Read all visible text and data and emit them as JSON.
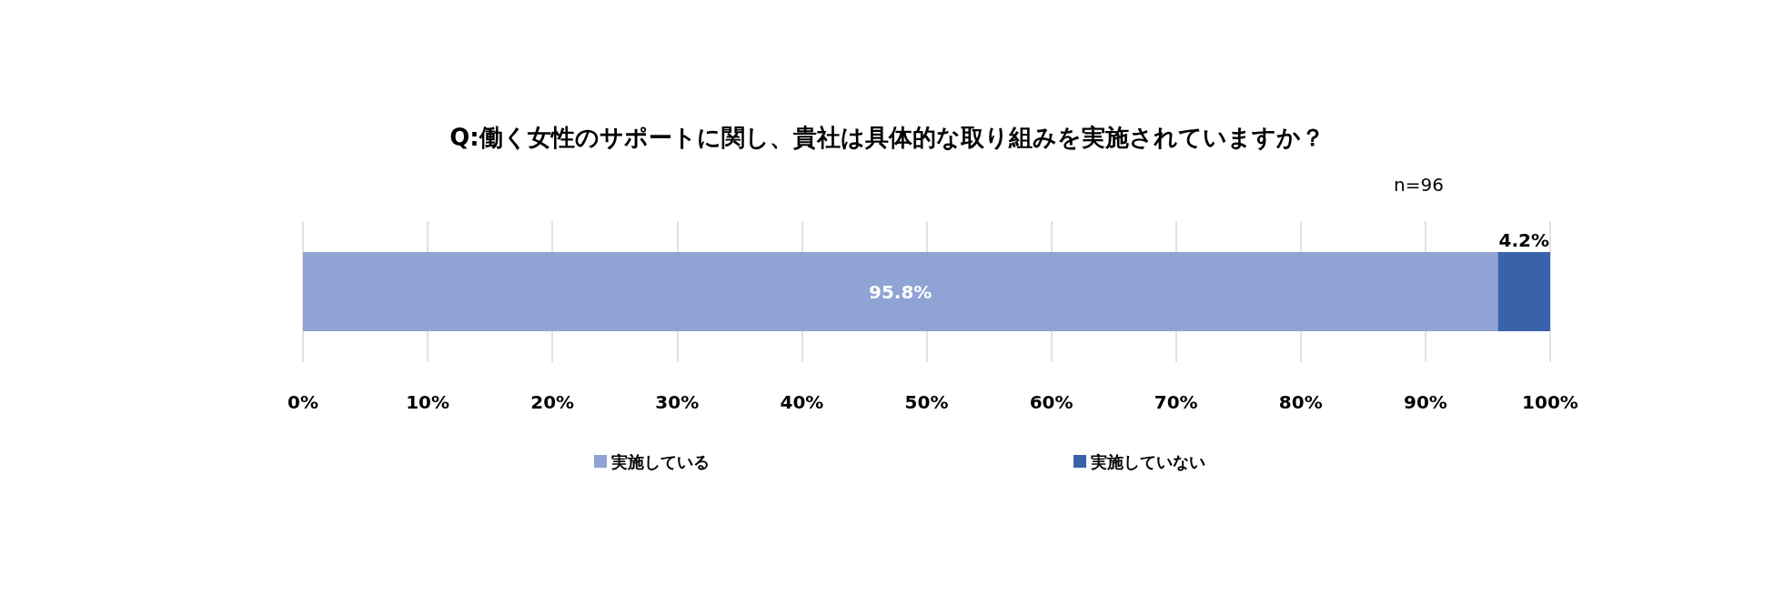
{
  "chart_data": {
    "type": "bar",
    "orientation": "horizontal",
    "stacked": true,
    "title": "Q:働く女性のサポートに関し、貴社は具体的な取り組みを実施されていますか？",
    "annotations": [
      "n=96"
    ],
    "categories": [
      null
    ],
    "series": [
      {
        "name": "実施している",
        "color": "#8fa3d4",
        "values": [
          95.8
        ],
        "value_labels": [
          "95.8%"
        ]
      },
      {
        "name": "実施していない",
        "color": "#3a62aa",
        "values": [
          4.2
        ],
        "value_labels": [
          "4.2%"
        ]
      }
    ],
    "xlim": [
      0,
      100
    ],
    "xticks": [
      {
        "value": 0,
        "label": "0%"
      },
      {
        "value": 10,
        "label": "10%"
      },
      {
        "value": 20,
        "label": "20%"
      },
      {
        "value": 30,
        "label": "30%"
      },
      {
        "value": 40,
        "label": "40%"
      },
      {
        "value": 50,
        "label": "50%"
      },
      {
        "value": 60,
        "label": "60%"
      },
      {
        "value": 70,
        "label": "70%"
      },
      {
        "value": 80,
        "label": "80%"
      },
      {
        "value": 90,
        "label": "90%"
      },
      {
        "value": 100,
        "label": "100%"
      }
    ],
    "grid": "x",
    "legend": "bottom"
  }
}
